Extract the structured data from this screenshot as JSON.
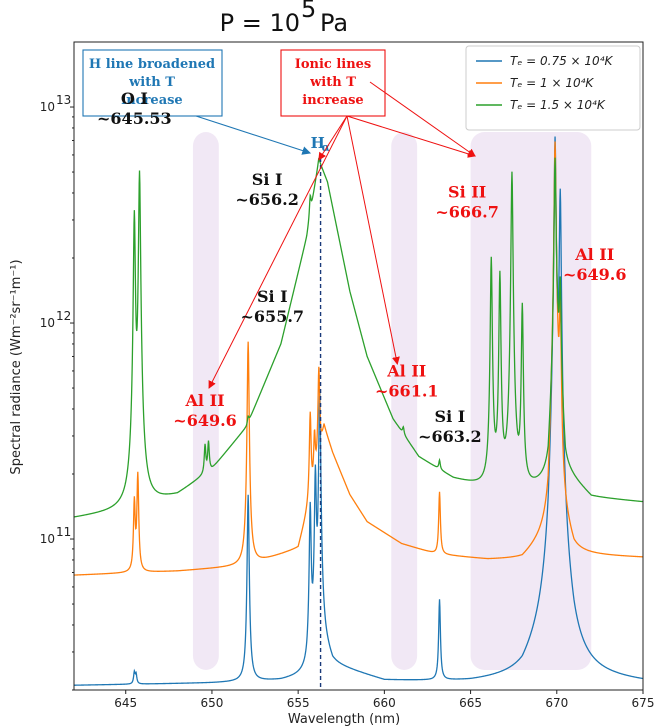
{
  "chart_data": {
    "type": "line",
    "title": "P = 10",
    "title_exponent": "5",
    "title_unit": "Pa",
    "xlabel": "Wavelength (nm)",
    "ylabel": "Spectral radiance (Wm⁻²sr⁻¹m⁻¹)",
    "xlim": [
      642,
      675
    ],
    "ylim": [
      20000000000,
      20000000000000
    ],
    "yscale": "log",
    "xticks": [
      645,
      650,
      655,
      660,
      665,
      670,
      675
    ],
    "yticks": [
      {
        "value": 100000000000,
        "label": "10",
        "exp": "11"
      },
      {
        "value": 1000000000000,
        "label": "10",
        "exp": "12"
      },
      {
        "value": 10000000000000,
        "label": "10",
        "exp": "13"
      }
    ],
    "legend_position": "top-right",
    "series": [
      {
        "name": "Tₑ = 0.75 × 10⁴K",
        "color": "#1f77b4",
        "baseline": 21000000000,
        "continuum": [
          [
            642,
            21000000000
          ],
          [
            650,
            21500000000
          ],
          [
            654,
            22000000000
          ],
          [
            655.5,
            23000000000
          ],
          [
            656.0,
            30000000000
          ],
          [
            656.3,
            35000000000
          ],
          [
            656.6,
            30000000000
          ],
          [
            657,
            26000000000
          ],
          [
            660,
            22000000000
          ],
          [
            665,
            21500000000
          ],
          [
            668,
            22000000000
          ],
          [
            669.5,
            30000000000
          ],
          [
            669.9,
            250000000000
          ],
          [
            670.3,
            30000000000
          ],
          [
            671,
            22500000000
          ],
          [
            675,
            21500000000
          ]
        ],
        "peaks": [
          {
            "x": 645.5,
            "y": 24000000000
          },
          {
            "x": 645.6,
            "y": 23500000000
          },
          {
            "x": 652.1,
            "y": 160000000000
          },
          {
            "x": 655.7,
            "y": 140000000000
          },
          {
            "x": 656.0,
            "y": 200000000000
          },
          {
            "x": 656.25,
            "y": 500000000000
          },
          {
            "x": 663.2,
            "y": 52000000000
          },
          {
            "x": 669.9,
            "y": 7200000000000
          },
          {
            "x": 670.2,
            "y": 4000000000000
          }
        ]
      },
      {
        "name": "Tₑ = 1 × 10⁴K",
        "color": "#ff7f0e",
        "baseline": 70000000000,
        "continuum": [
          [
            642,
            68000000000
          ],
          [
            648,
            71000000000
          ],
          [
            652,
            75000000000
          ],
          [
            655,
            90000000000
          ],
          [
            656,
            180000000000
          ],
          [
            656.5,
            330000000000
          ],
          [
            657,
            250000000000
          ],
          [
            658,
            160000000000
          ],
          [
            659,
            120000000000
          ],
          [
            661,
            95000000000
          ],
          [
            663,
            85000000000
          ],
          [
            666,
            80000000000
          ],
          [
            668,
            80000000000
          ],
          [
            669.5,
            100000000000
          ],
          [
            669.9,
            900000000000
          ],
          [
            670.3,
            110000000000
          ],
          [
            671,
            84000000000
          ],
          [
            675,
            82000000000
          ]
        ],
        "peaks": [
          {
            "x": 645.5,
            "y": 150000000000
          },
          {
            "x": 645.7,
            "y": 200000000000
          },
          {
            "x": 652.1,
            "y": 820000000000
          },
          {
            "x": 655.7,
            "y": 380000000000
          },
          {
            "x": 655.95,
            "y": 300000000000
          },
          {
            "x": 656.2,
            "y": 620000000000
          },
          {
            "x": 663.2,
            "y": 165000000000
          },
          {
            "x": 666.2,
            "y": 78000000000
          },
          {
            "x": 666.7,
            "y": 74000000000
          },
          {
            "x": 667.3,
            "y": 80000000000
          },
          {
            "x": 668.1,
            "y": 73000000000
          },
          {
            "x": 669.9,
            "y": 6900000000000
          },
          {
            "x": 670.2,
            "y": 1200000000000
          }
        ]
      },
      {
        "name": "Tₑ = 1.5 × 10⁴K",
        "color": "#2ca02c",
        "baseline": 125000000000,
        "continuum": [
          [
            642,
            125000000000
          ],
          [
            645,
            135000000000
          ],
          [
            648,
            160000000000
          ],
          [
            650,
            210000000000
          ],
          [
            652,
            330000000000
          ],
          [
            654,
            800000000000
          ],
          [
            655.5,
            2500000000000
          ],
          [
            656.2,
            5700000000000
          ],
          [
            656.7,
            4500000000000
          ],
          [
            658,
            1400000000000
          ],
          [
            659,
            700000000000
          ],
          [
            660.5,
            360000000000
          ],
          [
            662,
            240000000000
          ],
          [
            664,
            190000000000
          ],
          [
            666,
            170000000000
          ],
          [
            668,
            160000000000
          ],
          [
            669.5,
            180000000000
          ],
          [
            670,
            800000000000
          ],
          [
            670.5,
            200000000000
          ],
          [
            672,
            155000000000
          ],
          [
            675,
            148000000000
          ]
        ],
        "peaks": [
          {
            "x": 645.5,
            "y": 3200000000000
          },
          {
            "x": 645.8,
            "y": 5000000000000
          },
          {
            "x": 649.6,
            "y": 270000000000
          },
          {
            "x": 649.8,
            "y": 280000000000
          },
          {
            "x": 652.1,
            "y": 370000000000
          },
          {
            "x": 655.7,
            "y": 3900000000000
          },
          {
            "x": 656.2,
            "y": 5800000000000
          },
          {
            "x": 661.1,
            "y": 330000000000
          },
          {
            "x": 663.2,
            "y": 230000000000
          },
          {
            "x": 666.2,
            "y": 2000000000000
          },
          {
            "x": 666.7,
            "y": 1700000000000
          },
          {
            "x": 667.4,
            "y": 5000000000000
          },
          {
            "x": 668.0,
            "y": 1200000000000
          },
          {
            "x": 669.9,
            "y": 5800000000000
          },
          {
            "x": 670.2,
            "y": 1500000000000
          }
        ]
      }
    ],
    "shaded_regions": [
      {
        "x0": 648.9,
        "x1": 650.4,
        "color": "#efe4f3"
      },
      {
        "x0": 660.4,
        "x1": 661.9,
        "color": "#efe4f3"
      },
      {
        "x0": 665.0,
        "x1": 672.0,
        "color": "#efe4f3"
      }
    ],
    "h_alpha_x": 656.3,
    "annotations": [
      {
        "id": "oi",
        "lines": [
          "O I",
          "~645.53"
        ],
        "color": "black",
        "x": 645.5,
        "y": 9500000000000
      },
      {
        "id": "si1-656",
        "lines": [
          "Si I",
          "~656.2"
        ],
        "color": "black",
        "x": 653.2,
        "y": 4000000000000
      },
      {
        "id": "si1-655",
        "lines": [
          "Si I",
          "~655.7"
        ],
        "color": "black",
        "x": 653.5,
        "y": 1150000000000
      },
      {
        "id": "al2-left",
        "lines": [
          "Al II",
          "~649.6"
        ],
        "color": "red",
        "x": 649.6,
        "y": 380000000000
      },
      {
        "id": "al2-mid",
        "lines": [
          "Al II",
          "~661.1"
        ],
        "color": "red",
        "x": 661.3,
        "y": 520000000000
      },
      {
        "id": "si1-663",
        "lines": [
          "Si I",
          "~663.2"
        ],
        "color": "black",
        "x": 663.8,
        "y": 320000000000
      },
      {
        "id": "si2",
        "lines": [
          "Si II",
          "~666.7"
        ],
        "color": "red",
        "x": 664.8,
        "y": 3500000000000
      },
      {
        "id": "al2-right",
        "lines": [
          "Al II",
          "~649.6"
        ],
        "color": "red",
        "x": 672.2,
        "y": 1800000000000
      }
    ],
    "h_alpha_label": "H",
    "h_alpha_sub": "α",
    "callouts": [
      {
        "id": "h-broadened",
        "lines": [
          "H line broadened",
          "with T",
          "increase"
        ],
        "color": "blue"
      },
      {
        "id": "ionic",
        "lines": [
          "Ionic lines",
          "with T",
          "increase"
        ],
        "color": "red"
      }
    ]
  }
}
